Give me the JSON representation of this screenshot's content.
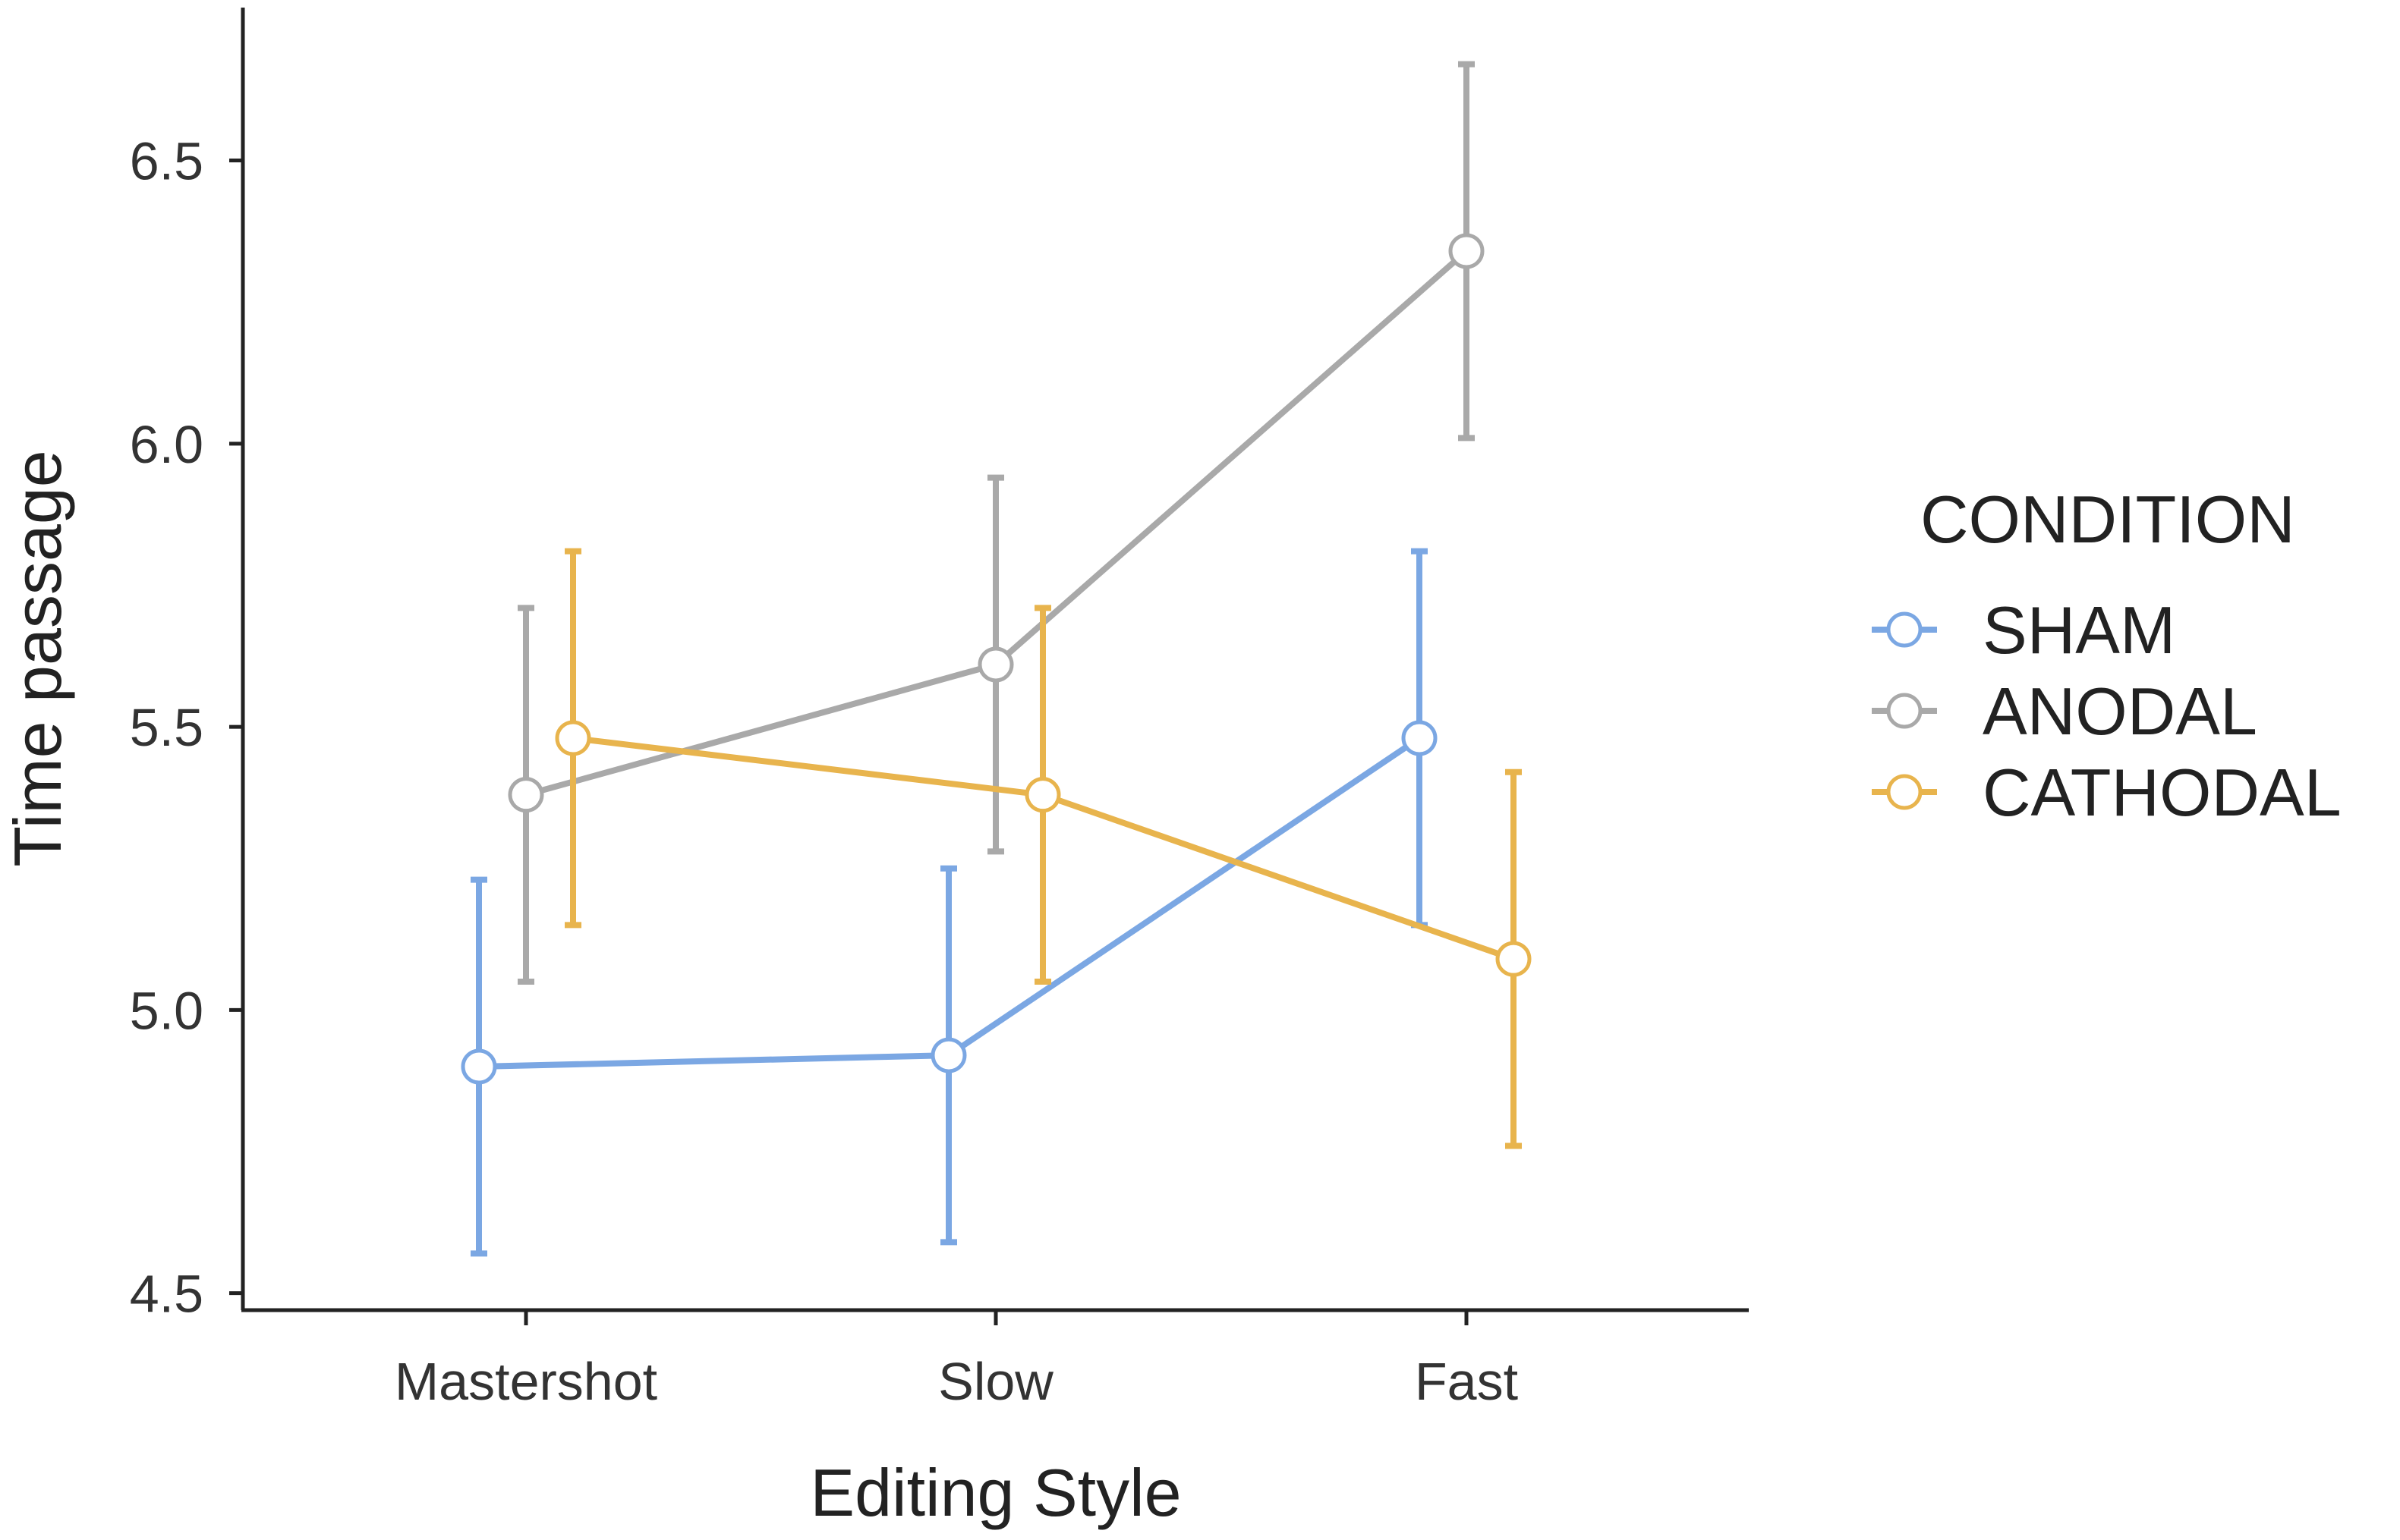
{
  "chart_data": {
    "type": "line",
    "xlabel": "Editing Style",
    "ylabel": "Time passage",
    "categories": [
      "Mastershot",
      "Slow",
      "Fast"
    ],
    "ylim": [
      4.47,
      6.77
    ],
    "yticks": [
      "4.5",
      "5.0",
      "5.5",
      "6.0",
      "6.5"
    ],
    "grid": false,
    "legend": {
      "title": "CONDITION",
      "placement": "right"
    },
    "series": [
      {
        "name": "SHAM",
        "color": "#7BA7E3",
        "values": [
          4.9,
          4.92,
          5.48
        ],
        "err_low": [
          4.57,
          4.59,
          5.15
        ],
        "err_high": [
          5.23,
          5.25,
          5.81
        ]
      },
      {
        "name": "ANODAL",
        "color": "#A9A9A9",
        "values": [
          5.38,
          5.61,
          6.34
        ],
        "err_low": [
          5.05,
          5.28,
          6.01
        ],
        "err_high": [
          5.71,
          5.94,
          6.67
        ]
      },
      {
        "name": "CATHODAL",
        "color": "#E8B44D",
        "values": [
          5.48,
          5.38,
          5.09
        ],
        "err_low": [
          5.15,
          5.05,
          4.76
        ],
        "err_high": [
          5.81,
          5.71,
          5.42
        ]
      }
    ]
  }
}
